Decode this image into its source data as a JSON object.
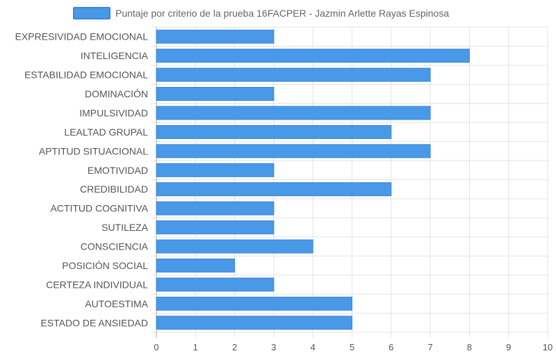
{
  "chart_data": {
    "type": "bar",
    "orientation": "horizontal",
    "legend": {
      "label": "Puntaje por criterio de la prueba 16FACPER - Jazmin Arlette Rayas Espinosa",
      "position": "top-center"
    },
    "categories": [
      "EXPRESIVIDAD EMOCIONAL",
      "INTELIGENCIA",
      "ESTABILIDAD EMOCIONAL",
      "DOMINACIÓN",
      "IMPULSIVIDAD",
      "LEALTAD GRUPAL",
      "APTITUD SITUACIONAL",
      "EMOTIVIDAD",
      "CREDIBILIDAD",
      "ACTITUD COGNITIVA",
      "SUTILEZA",
      "CONSCIENCIA",
      "POSICIÓN SOCIAL",
      "CERTEZA INDIVIDUAL",
      "AUTOESTIMA",
      "ESTADO DE ANSIEDAD"
    ],
    "series": [
      {
        "name": "Puntaje por criterio de la prueba 16FACPER - Jazmin Arlette Rayas Espinosa",
        "values": [
          3,
          8,
          7,
          3,
          7,
          6,
          7,
          3,
          6,
          3,
          3,
          4,
          2,
          3,
          5,
          5
        ]
      }
    ],
    "xlim": [
      0,
      10
    ],
    "xticks": [
      "0",
      "1",
      "2",
      "3",
      "4",
      "5",
      "6",
      "7",
      "8",
      "9",
      "10"
    ],
    "grid": true,
    "colors": {
      "bar_fill": "#4a98e8",
      "bar_stroke": "#3a86d8",
      "grid": "#e3e3e3",
      "axis": "#aaaaaa"
    }
  }
}
